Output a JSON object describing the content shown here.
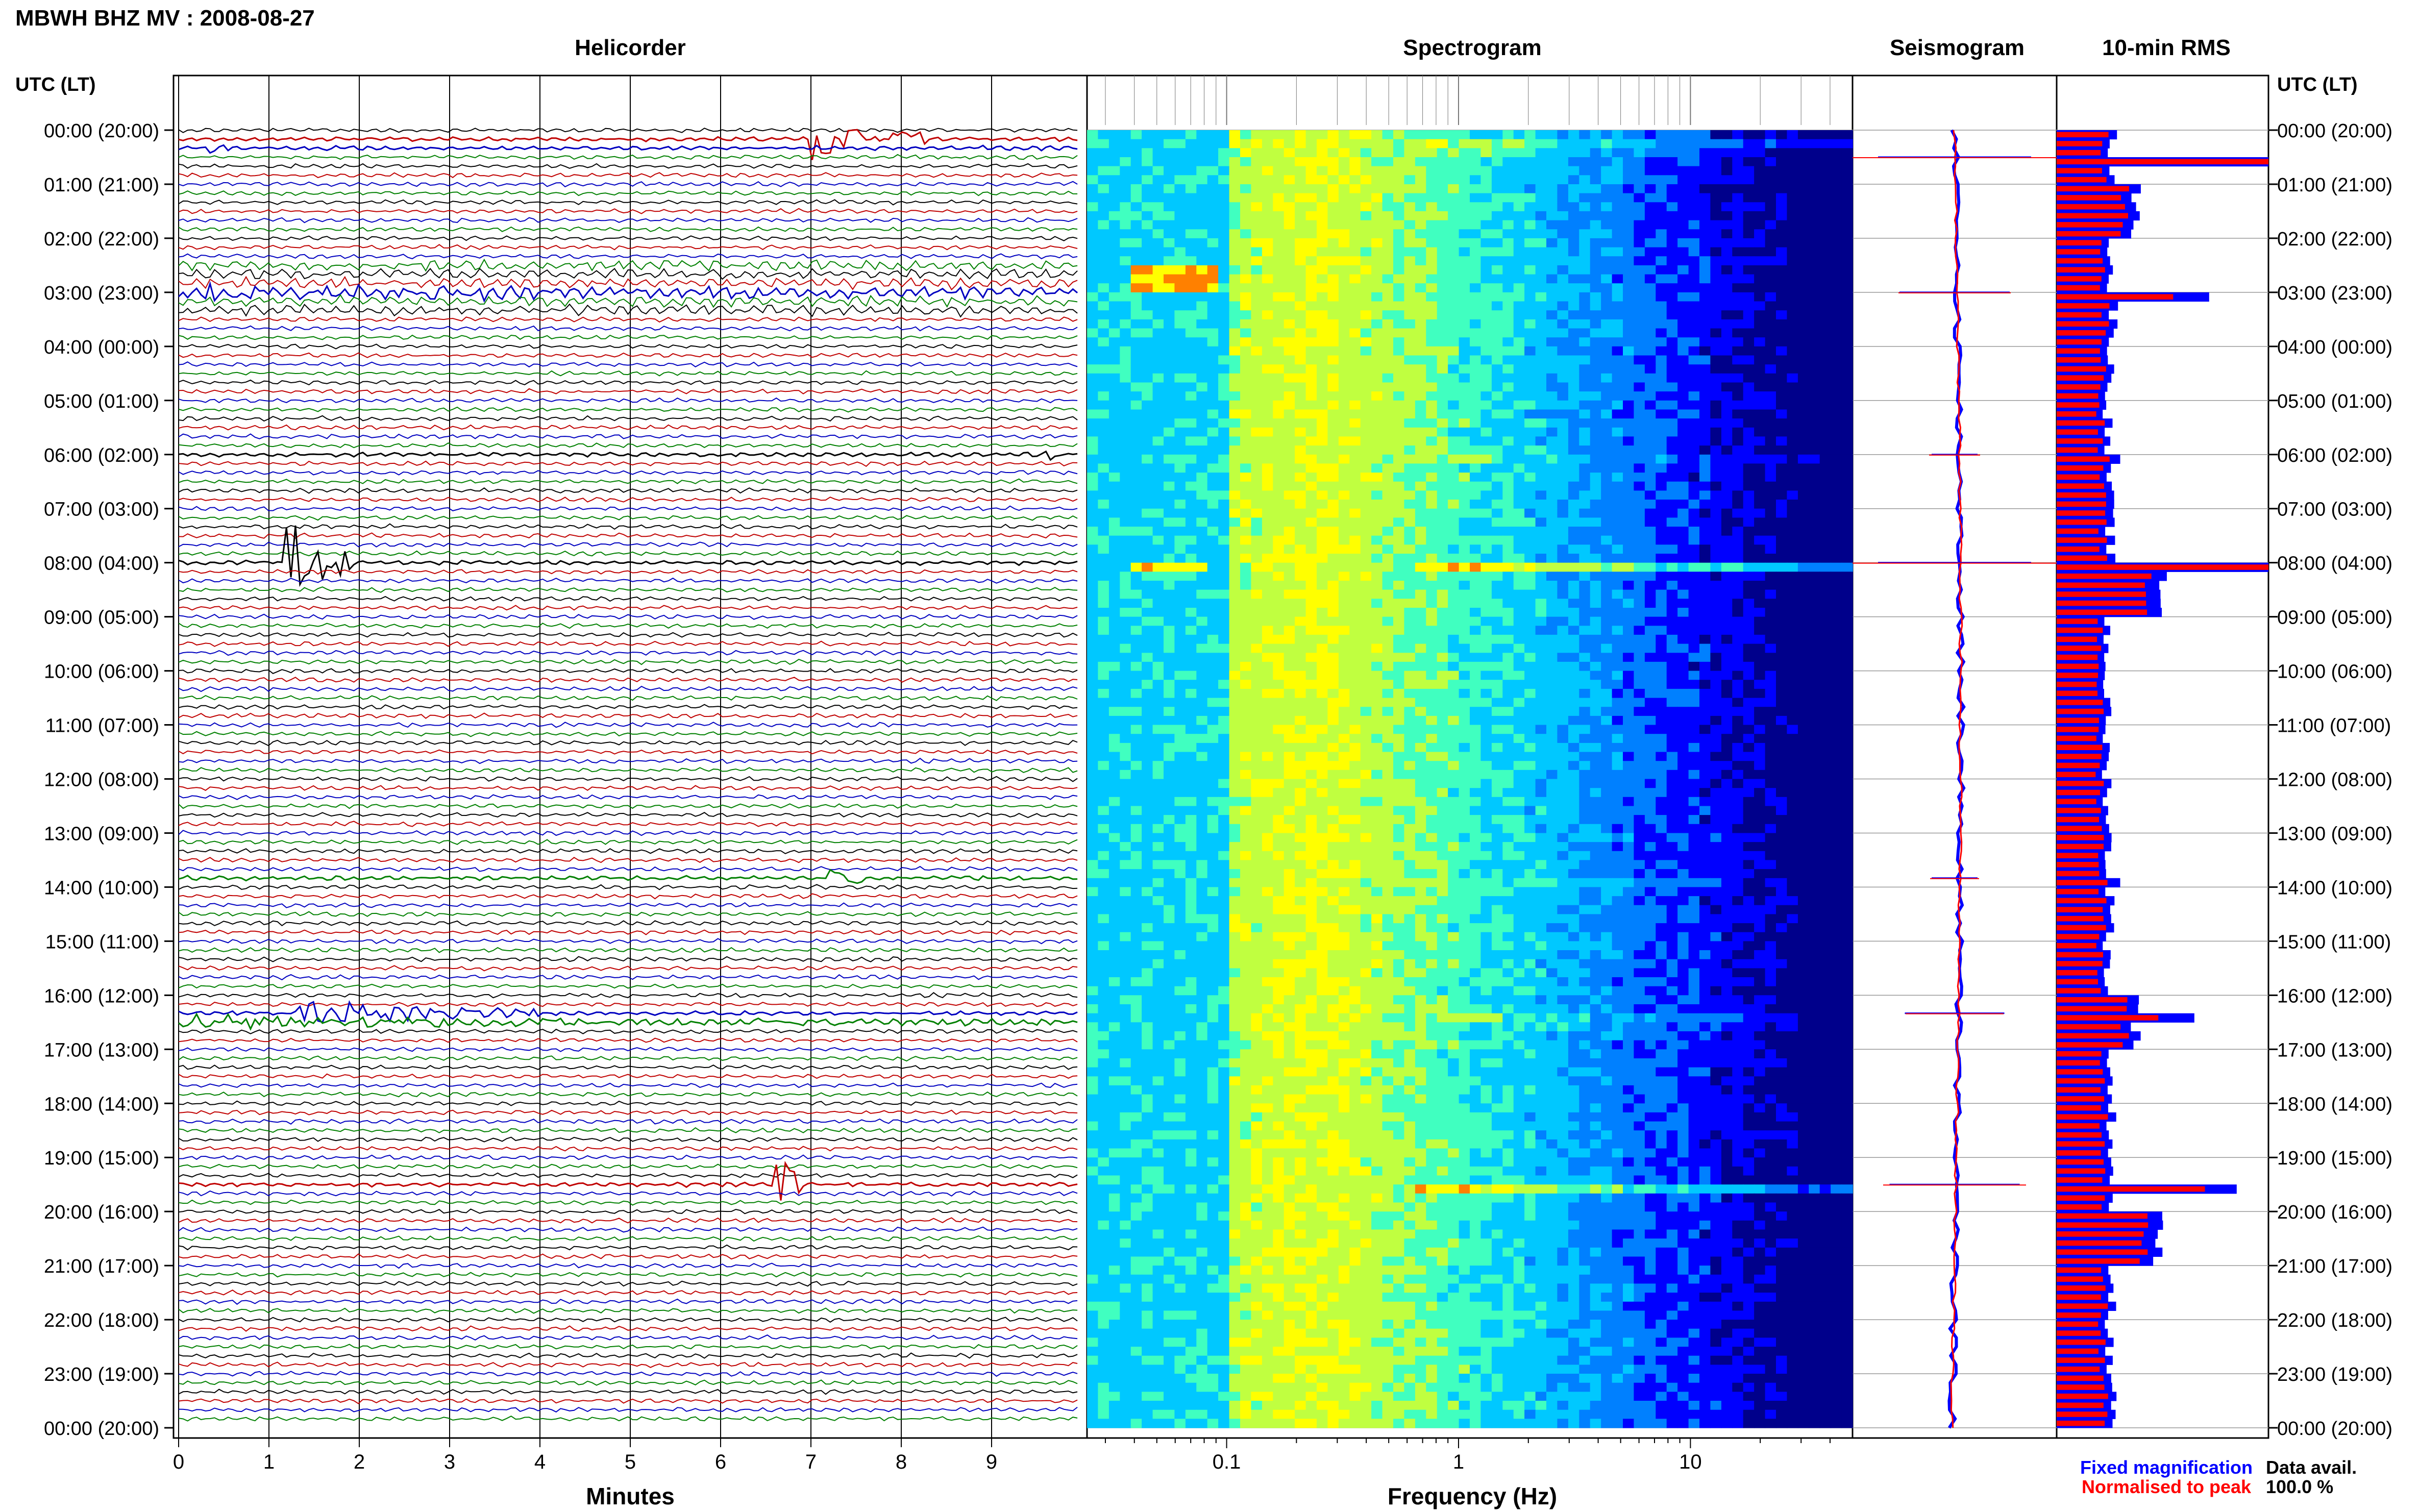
{
  "header": {
    "title": "MBWH BHZ MV : 2008-08-27"
  },
  "panels": {
    "helicorder_title": "Helicorder",
    "spectrogram_title": "Spectrogram",
    "seismogram_title": "Seismogram",
    "rms_title": "10-min RMS"
  },
  "axes": {
    "time_axis_label": "UTC (LT)",
    "helicorder_xlabel": "Minutes",
    "spectrogram_xlabel": "Frequency (Hz)"
  },
  "legend": {
    "fixed": "Fixed magnification",
    "normalised": "Normalised to peak",
    "fixed_color": "#0000ff",
    "normalised_color": "#ff0000"
  },
  "data_availability": {
    "label": "Data avail.",
    "value": "100.0 %"
  },
  "chart_data": [
    {
      "type": "line",
      "name": "helicorder",
      "title": "Helicorder",
      "xlabel": "Minutes",
      "ylabel": "UTC (LT)",
      "x_ticks": [
        "0",
        "1",
        "2",
        "3",
        "4",
        "5",
        "6",
        "7",
        "8",
        "9"
      ],
      "xlim": [
        0,
        10
      ],
      "y_ticks": [
        "00:00 (20:00)",
        "01:00 (21:00)",
        "02:00 (22:00)",
        "03:00 (23:00)",
        "04:00 (00:00)",
        "05:00 (01:00)",
        "06:00 (02:00)",
        "07:00 (03:00)",
        "08:00 (04:00)",
        "09:00 (05:00)",
        "10:00 (06:00)",
        "11:00 (07:00)",
        "12:00 (08:00)",
        "13:00 (09:00)",
        "14:00 (10:00)",
        "15:00 (11:00)",
        "16:00 (12:00)",
        "17:00 (13:00)",
        "18:00 (14:00)",
        "19:00 (15:00)",
        "20:00 (16:00)",
        "21:00 (17:00)",
        "22:00 (18:00)",
        "23:00 (19:00)",
        "00:00 (20:00)"
      ],
      "lines_per_hour": 6,
      "trace_colors": [
        "#000000",
        "#c00000",
        "#0000c0",
        "#008000"
      ],
      "events": [
        {
          "row": 1,
          "minute": 7.0,
          "end": 8.3,
          "amp": 1.6,
          "color": "#008000"
        },
        {
          "row": 2,
          "minute": 0.3,
          "end": 0.6,
          "amp": 0.8,
          "color": "#000000"
        },
        {
          "row": 18,
          "minute": 0.0,
          "end": 9.9,
          "amp": 0.5,
          "color": "#0000c0"
        },
        {
          "row": 48,
          "minute": 1.15,
          "end": 1.9,
          "amp": 4.0,
          "color": "#000000"
        },
        {
          "row": 98,
          "minute": 1.3,
          "end": 4.0,
          "amp": 1.1,
          "color": "#c00000"
        },
        {
          "row": 99,
          "minute": 0.0,
          "end": 9.9,
          "amp": 0.5,
          "color": "#0000c0"
        },
        {
          "row": 117,
          "minute": 6.6,
          "end": 6.9,
          "amp": 3.5,
          "color": "#0000c0"
        },
        {
          "row": 83,
          "minute": 7.2,
          "end": 7.6,
          "amp": 0.9,
          "color": "#c00000"
        },
        {
          "row": 36,
          "minute": 9.6,
          "end": 9.9,
          "amp": 0.9,
          "color": "#c00000"
        }
      ]
    },
    {
      "type": "heatmap",
      "name": "spectrogram",
      "title": "Spectrogram",
      "xlabel": "Frequency (Hz)",
      "x_scale": "log",
      "xlim": [
        0.025,
        50
      ],
      "x_ticks": [
        "0.1",
        "1",
        "10"
      ],
      "colormap": [
        "#00008b",
        "#0000ff",
        "#0080ff",
        "#00c8ff",
        "#40ffc0",
        "#c0ff40",
        "#ffff00",
        "#ff8000",
        "#ff0000"
      ]
    },
    {
      "type": "line",
      "name": "seismogram",
      "title": "Seismogram",
      "series": [
        {
          "name": "Fixed magnification",
          "color": "#0000ff"
        },
        {
          "name": "Normalised to peak",
          "color": "#ff0000"
        }
      ]
    },
    {
      "type": "bar",
      "name": "rms",
      "title": "10-min RMS",
      "orientation": "horizontal",
      "series": [
        {
          "name": "Fixed magnification",
          "color": "#0000ff"
        },
        {
          "name": "Normalised to peak",
          "color": "#ff0000"
        }
      ],
      "hourly_values": [
        0.28,
        0.6,
        0.26,
        0.3,
        0.25,
        0.22,
        0.24,
        0.25,
        0.95,
        0.21,
        0.2,
        0.2,
        0.22,
        0.23,
        0.25,
        0.22,
        0.6,
        0.25,
        0.27,
        0.26,
        0.9,
        0.28,
        0.23,
        0.3
      ],
      "peaks": [
        {
          "row": 3,
          "fixed": 1.0,
          "normalised": 1.0
        },
        {
          "row": 18,
          "fixed": 0.72,
          "normalised": 0.55
        },
        {
          "row": 48,
          "fixed": 1.0,
          "normalised": 1.0
        },
        {
          "row": 98,
          "fixed": 0.65,
          "normalised": 0.48
        },
        {
          "row": 117,
          "fixed": 0.85,
          "normalised": 0.7
        },
        {
          "row": 83,
          "fixed": 0.3,
          "normalised": 0.24
        },
        {
          "row": 36,
          "fixed": 0.3,
          "normalised": 0.25
        }
      ]
    }
  ]
}
